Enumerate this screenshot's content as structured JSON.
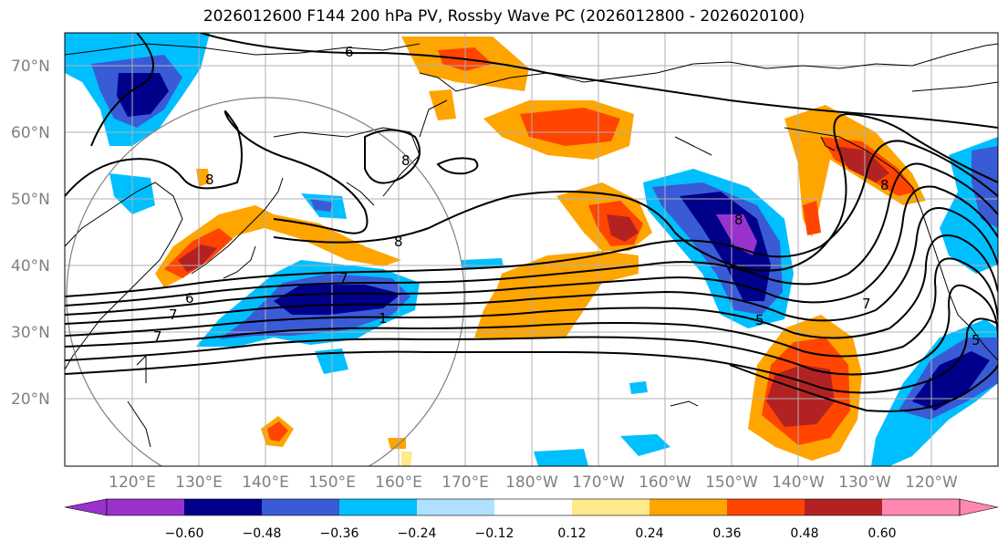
{
  "title": "2026012600 F144 200 hPa PV, Rossby Wave PC (2026012800 - 2026020100)",
  "lat_labels": [
    "70°N",
    "60°N",
    "50°N",
    "40°N",
    "30°N",
    "20°N"
  ],
  "lon_labels": [
    "120°E",
    "130°E",
    "140°E",
    "150°E",
    "160°E",
    "170°E",
    "180°W",
    "170°W",
    "160°W",
    "150°W",
    "140°W",
    "130°W",
    "120°W"
  ],
  "contour_labels": [
    "6",
    "8",
    "8",
    "7",
    "8",
    "5",
    "1",
    "7",
    "6",
    "7",
    "5",
    "7",
    "8",
    "8"
  ],
  "colorbar": {
    "ticks": [
      "−0.60",
      "−0.48",
      "−0.36",
      "−0.24",
      "−0.12",
      "0.12",
      "0.24",
      "0.36",
      "0.48",
      "0.60"
    ],
    "colors": [
      "#9932cc",
      "#00008b",
      "#3a5bd6",
      "#00bfff",
      "#b0e0ff",
      "#ffffff",
      "#ffe98a",
      "#ffa500",
      "#ff4500",
      "#b22222",
      "#ff88b0"
    ]
  },
  "palette": {
    "neg_strong": "#9932cc",
    "neg_dark": "#00008b",
    "neg_mid": "#3a5bd6",
    "neg_light": "#00bfff",
    "neg_pale": "#b0e0ff",
    "pos_pale": "#ffe98a",
    "pos_light": "#ffa500",
    "pos_mid": "#ff4500",
    "pos_dark": "#b22222",
    "pos_strong": "#ff88b0"
  }
}
